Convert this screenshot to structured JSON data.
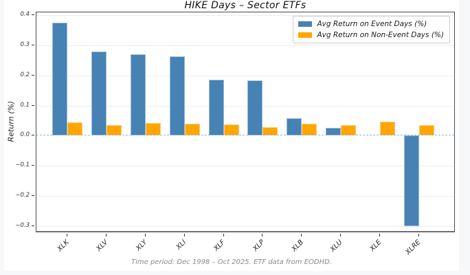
{
  "figure": {
    "background": "#ffffff",
    "page_background": "#f7f8f9"
  },
  "chart_data": {
    "type": "bar",
    "title": "HIKE Days – Sector ETFs",
    "caption": "Time period: Dec 1998 – Oct 2025. ETF data from EODHD.",
    "categories": [
      "XLK",
      "XLV",
      "XLY",
      "XLI",
      "XLF",
      "XLP",
      "XLB",
      "XLU",
      "XLE",
      "XLRE"
    ],
    "series": [
      {
        "name": "Avg Return on Event Days (%)",
        "color": "#4682b4",
        "values": [
          0.375,
          0.28,
          0.269,
          0.262,
          0.186,
          0.184,
          0.058,
          0.027,
          0.0,
          -0.3
        ]
      },
      {
        "name": "Avg Return on Non-Event Days (%)",
        "color": "#ffa500",
        "values": [
          0.045,
          0.036,
          0.043,
          0.04,
          0.038,
          0.029,
          0.039,
          0.036,
          0.046,
          0.036
        ]
      }
    ],
    "xlabel": "",
    "ylabel": "Return (%)",
    "ylim": [
      -0.316,
      0.409
    ],
    "yticks": [
      0.4,
      0.3,
      0.2,
      0.1,
      0.0,
      -0.1,
      -0.2,
      -0.3
    ],
    "grid": true,
    "legend_position": "upper right",
    "zero_line": {
      "style": "dashed",
      "color": "#8fb6d8"
    }
  }
}
